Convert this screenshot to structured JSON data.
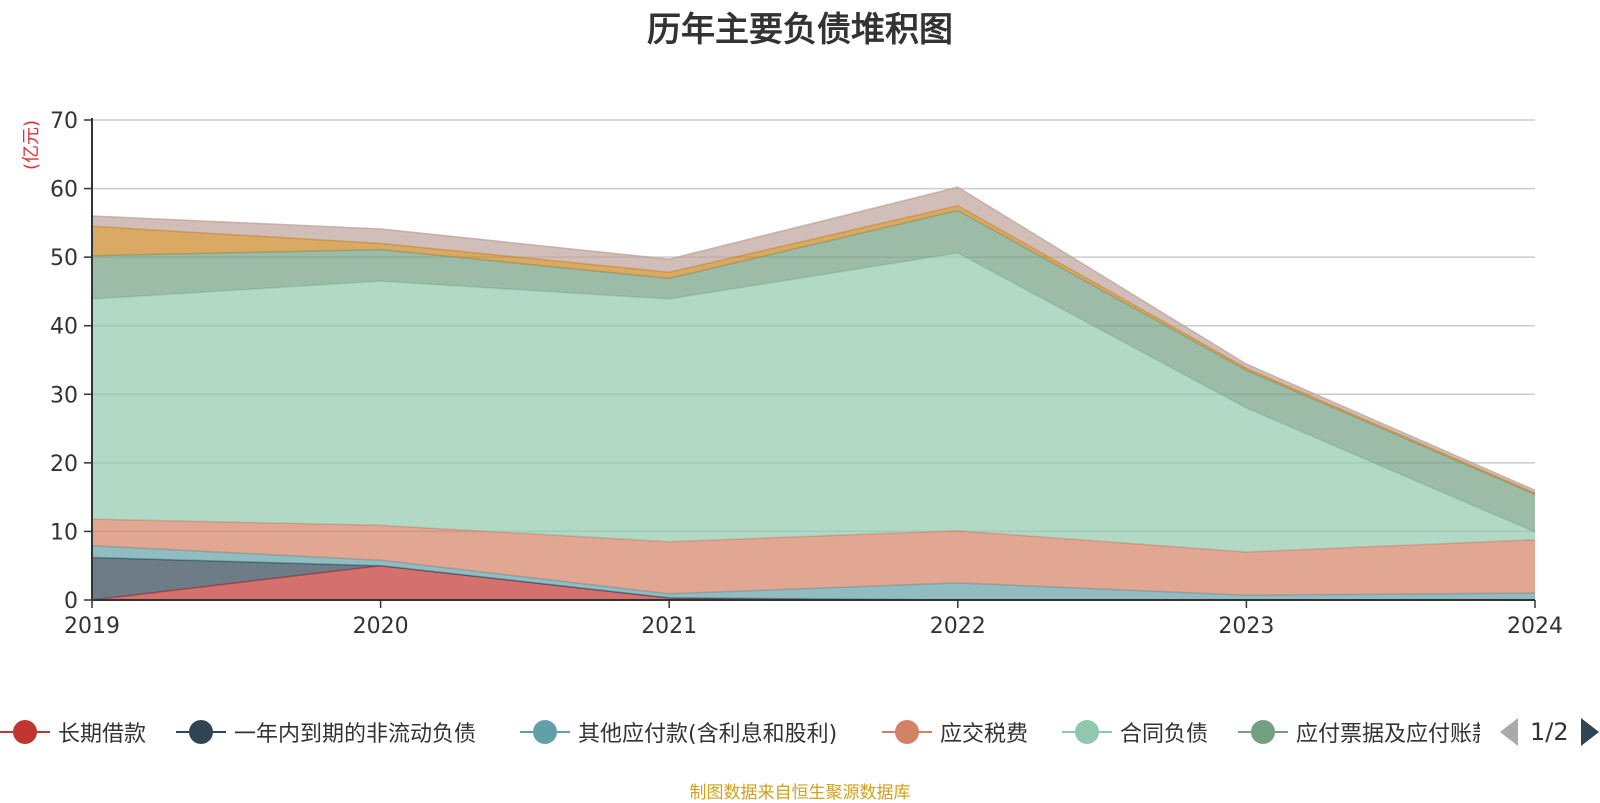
{
  "chart_data": {
    "type": "area",
    "stacked": true,
    "title": "历年主要负债堆积图",
    "ylabel": "(亿元)",
    "ylim": [
      0,
      70
    ],
    "yticks": [
      0,
      10,
      20,
      30,
      40,
      50,
      60,
      70
    ],
    "categories": [
      "2019",
      "2020",
      "2021",
      "2022",
      "2023",
      "2024"
    ],
    "grid": true,
    "legend_position": "bottom",
    "series": [
      {
        "name": "长期借款",
        "color": "#c23531",
        "values": [
          0,
          5.0,
          0.3,
          0,
          0,
          0
        ]
      },
      {
        "name": "一年内到期的非流动负债",
        "color": "#2f4554",
        "values": [
          6.2,
          0,
          0,
          0,
          0,
          0
        ]
      },
      {
        "name": "其他应付款(含利息和股利)",
        "color": "#61a0a8",
        "values": [
          1.7,
          0.8,
          0.6,
          2.5,
          0.7,
          1.0
        ]
      },
      {
        "name": "应交税费",
        "color": "#d48265",
        "values": [
          3.9,
          5.1,
          7.6,
          7.6,
          6.3,
          7.8
        ]
      },
      {
        "name": "合同负债",
        "color": "#91c7ae",
        "values": [
          32.1,
          35.6,
          35.4,
          40.5,
          21.0,
          1.1
        ]
      },
      {
        "name": "应付票据及应付账款",
        "color": "#749f83",
        "values": [
          6.3,
          4.6,
          3.0,
          6.2,
          5.5,
          5.5
        ]
      },
      {
        "name": "",
        "color": "#ca8622",
        "values": [
          4.3,
          0.9,
          0.9,
          0.7,
          0.3,
          0.2
        ]
      },
      {
        "name": "",
        "color": "#bda29a",
        "values": [
          1.5,
          2.1,
          1.9,
          2.7,
          0.6,
          0.4
        ]
      }
    ]
  },
  "legend": {
    "pager_text": "1/2"
  },
  "source_note": "制图数据来自恒生聚源数据库"
}
